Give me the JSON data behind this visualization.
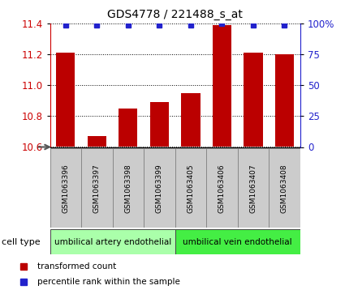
{
  "title": "GDS4778 / 221488_s_at",
  "samples": [
    "GSM1063396",
    "GSM1063397",
    "GSM1063398",
    "GSM1063399",
    "GSM1063405",
    "GSM1063406",
    "GSM1063407",
    "GSM1063408"
  ],
  "bar_values": [
    11.21,
    10.67,
    10.85,
    10.89,
    10.95,
    11.39,
    11.21,
    11.2
  ],
  "percentile_values": [
    99,
    99,
    99,
    99,
    99,
    100,
    99,
    99
  ],
  "ylim": [
    10.6,
    11.4
  ],
  "yticks_left": [
    10.6,
    10.8,
    11.0,
    11.2,
    11.4
  ],
  "yticks_right": [
    0,
    25,
    50,
    75,
    100
  ],
  "bar_color": "#bb0000",
  "dot_color": "#2222cc",
  "bar_width": 0.6,
  "cell_groups": [
    {
      "label": "umbilical artery endothelial",
      "start": 0,
      "end": 4,
      "color": "#aaffaa"
    },
    {
      "label": "umbilical vein endothelial",
      "start": 4,
      "end": 8,
      "color": "#44ee44"
    }
  ],
  "legend_red_label": "transformed count",
  "legend_blue_label": "percentile rank within the sample",
  "cell_type_label": "cell type",
  "tick_label_color_left": "#cc0000",
  "tick_label_color_right": "#2222cc",
  "sample_box_color": "#cccccc",
  "sample_box_edge": "#888888"
}
